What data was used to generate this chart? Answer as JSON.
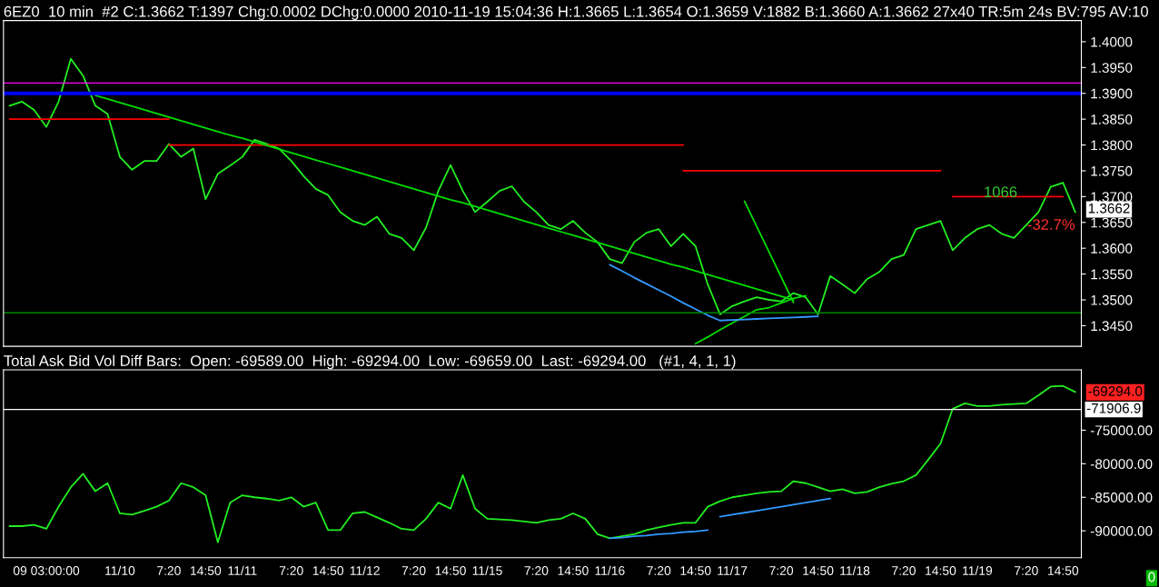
{
  "chart_data": [
    {
      "type": "line",
      "title": "6EZ0  10 min  #2 C:1.3662 T:1397 Chg:0.0002 DChg:0.0000 2010-11-19 15:04:36 H:1.3665 L:1.3654 O:1.3659 V:1882 B:1.3660 A:1.3662 27x40 TR:5m 24s BV:795 AV:10",
      "tick_labels": "y",
      "grid": false,
      "ylim": [
        1.341,
        1.4041
      ],
      "categories": [
        null,
        null,
        null,
        null,
        null,
        null,
        null,
        null,
        null,
        null,
        null,
        null,
        null,
        null,
        null,
        null,
        null,
        null,
        null,
        null,
        null,
        null,
        null,
        null,
        null,
        null,
        null,
        null,
        null,
        null,
        null,
        null,
        null,
        null,
        null,
        null,
        null,
        null,
        null,
        null,
        null,
        null,
        null,
        null,
        null,
        null,
        null,
        null,
        null,
        null,
        null,
        null,
        null,
        null,
        null,
        null,
        null,
        null,
        null,
        null,
        null,
        null,
        null,
        null,
        null,
        null,
        null,
        null,
        null,
        null,
        null,
        null,
        null,
        null,
        null,
        null,
        null,
        null,
        null,
        null,
        null,
        null,
        null,
        null,
        null,
        null,
        null,
        null
      ],
      "yticks": [
        {
          "value": 1.345,
          "label": "1.3450"
        },
        {
          "value": 1.35,
          "label": "1.3500"
        },
        {
          "value": 1.355,
          "label": "1.3550"
        },
        {
          "value": 1.36,
          "label": "1.3600"
        },
        {
          "value": 1.365,
          "label": "1.3650"
        },
        {
          "value": 1.37,
          "label": "1.3700"
        },
        {
          "value": 1.375,
          "label": "1.3750"
        },
        {
          "value": 1.38,
          "label": "1.3800"
        },
        {
          "value": 1.385,
          "label": "1.3850"
        },
        {
          "value": 1.39,
          "label": "1.3900"
        },
        {
          "value": 1.395,
          "label": "1.3950"
        },
        {
          "value": 1.4,
          "label": "1.4000"
        }
      ],
      "series": [
        {
          "color": "#22ee22",
          "values": [
            1.3876,
            1.3884,
            1.3868,
            1.3835,
            1.3884,
            1.3967,
            1.3934,
            1.3876,
            1.386,
            1.3777,
            1.3752,
            1.3769,
            1.3769,
            1.3802,
            1.3777,
            1.3793,
            1.3695,
            1.3744,
            1.376,
            1.3777,
            1.381,
            1.3802,
            1.3793,
            1.3769,
            1.374,
            1.3715,
            1.3703,
            1.367,
            1.3653,
            1.3645,
            1.3661,
            1.3628,
            1.362,
            1.3596,
            1.364,
            1.3711,
            1.3761,
            1.3711,
            1.367,
            1.369,
            1.3711,
            1.372,
            1.369,
            1.367,
            1.3645,
            1.3637,
            1.3653,
            1.363,
            1.3612,
            1.3579,
            1.3571,
            1.3612,
            1.363,
            1.3637,
            1.3604,
            1.3628,
            1.3604,
            1.353,
            1.3472,
            1.3488,
            1.3497,
            1.3505,
            1.35,
            1.3497,
            1.3513,
            1.3505,
            1.3472,
            1.3546,
            1.353,
            1.3513,
            1.354,
            1.3554,
            1.3579,
            1.3587,
            1.3637,
            1.3645,
            1.3653,
            1.3596,
            1.362,
            1.3637,
            1.3645,
            1.3628,
            1.362,
            1.3645,
            1.367,
            1.3719,
            1.3727,
            1.367
          ]
        },
        {
          "color": "#ff0000",
          "values": [
            1.385,
            1.385,
            1.385,
            1.385,
            1.385,
            1.385,
            1.385,
            1.385,
            1.385,
            1.385,
            1.385,
            1.385,
            1.385,
            1.385,
            null,
            null,
            null,
            null,
            null,
            null,
            null,
            null,
            null,
            null,
            null,
            null,
            null,
            null,
            null,
            null,
            null,
            null,
            null,
            null,
            null,
            null,
            null,
            null,
            null,
            null,
            null,
            null,
            null,
            null,
            null,
            null,
            null,
            null,
            null,
            null,
            null,
            null,
            null,
            null,
            null,
            null,
            null,
            null,
            null,
            null,
            null,
            null,
            null,
            null,
            null,
            null,
            null,
            null,
            null,
            null,
            null,
            null,
            null,
            null,
            null,
            null,
            null,
            null,
            null,
            null,
            null,
            null,
            null,
            null,
            null,
            null,
            null,
            null
          ]
        },
        {
          "color": "#ff0000",
          "values": [
            null,
            null,
            null,
            null,
            null,
            null,
            null,
            null,
            null,
            null,
            null,
            null,
            null,
            1.38,
            1.38,
            1.38,
            1.38,
            1.38,
            1.38,
            1.38,
            1.38,
            1.38,
            1.38,
            1.38,
            1.38,
            1.38,
            1.38,
            1.38,
            1.38,
            1.38,
            1.38,
            1.38,
            1.38,
            1.38,
            1.38,
            1.38,
            1.38,
            1.38,
            1.38,
            1.38,
            1.38,
            1.38,
            1.38,
            1.38,
            1.38,
            1.38,
            1.38,
            1.38,
            1.38,
            1.38,
            1.38,
            1.38,
            1.38,
            1.38,
            1.38,
            1.38,
            null,
            null,
            null,
            null,
            null,
            null,
            null,
            null,
            null,
            null,
            null,
            null,
            null,
            null,
            null,
            null,
            null,
            null,
            null,
            null,
            null,
            null,
            null,
            null,
            null,
            null,
            null,
            null,
            null,
            null,
            null,
            null
          ]
        },
        {
          "color": "#ff0000",
          "values": [
            null,
            null,
            null,
            null,
            null,
            null,
            null,
            null,
            null,
            null,
            null,
            null,
            null,
            null,
            null,
            null,
            null,
            null,
            null,
            null,
            null,
            null,
            null,
            null,
            null,
            null,
            null,
            null,
            null,
            null,
            null,
            null,
            null,
            null,
            null,
            null,
            null,
            null,
            null,
            null,
            null,
            null,
            null,
            null,
            null,
            null,
            null,
            null,
            null,
            null,
            null,
            null,
            null,
            null,
            null,
            1.375,
            1.375,
            1.375,
            1.375,
            1.375,
            1.375,
            1.375,
            1.375,
            1.375,
            1.375,
            1.375,
            1.375,
            1.375,
            1.375,
            1.375,
            1.375,
            1.375,
            1.375,
            1.375,
            1.375,
            1.375,
            1.375,
            null,
            null,
            null,
            null,
            null,
            null,
            null,
            null,
            null,
            null,
            null
          ]
        },
        {
          "color": "#ff0000",
          "values": [
            null,
            null,
            null,
            null,
            null,
            null,
            null,
            null,
            null,
            null,
            null,
            null,
            null,
            null,
            null,
            null,
            null,
            null,
            null,
            null,
            null,
            null,
            null,
            null,
            null,
            null,
            null,
            null,
            null,
            null,
            null,
            null,
            null,
            null,
            null,
            null,
            null,
            null,
            null,
            null,
            null,
            null,
            null,
            null,
            null,
            null,
            null,
            null,
            null,
            null,
            null,
            null,
            null,
            null,
            null,
            null,
            null,
            null,
            null,
            null,
            null,
            null,
            null,
            null,
            null,
            null,
            null,
            null,
            null,
            null,
            null,
            null,
            null,
            null,
            null,
            null,
            null,
            1.37,
            1.37,
            1.37,
            1.37,
            1.37,
            1.37,
            1.37,
            1.37,
            1.37,
            1.37,
            null
          ]
        },
        {
          "color": "#00dd00",
          "values": [
            null,
            null,
            null,
            null,
            null,
            null,
            null,
            1.3896,
            1.3889,
            1.3882,
            1.3875,
            1.3868,
            1.3861,
            1.3854,
            1.3847,
            1.384,
            1.3833,
            1.3826,
            1.3819,
            1.3813,
            1.3806,
            1.3799,
            1.3792,
            1.3785,
            1.3778,
            1.3771,
            1.3764,
            1.3757,
            1.375,
            1.3743,
            1.3736,
            1.3729,
            1.3722,
            1.3715,
            1.3708,
            1.3701,
            1.3694,
            1.3688,
            1.3681,
            1.3674,
            1.3667,
            1.366,
            1.3653,
            1.3646,
            1.3639,
            1.3632,
            1.3625,
            1.3618,
            1.3611,
            1.3604,
            1.3597,
            1.359,
            1.3583,
            1.3576,
            1.3569,
            1.3563,
            1.3556,
            1.3549,
            1.3542,
            1.3535,
            1.3528,
            1.3521,
            1.3514,
            1.3507,
            1.35,
            null,
            null,
            null,
            null,
            null,
            null,
            null,
            null,
            null,
            null,
            null,
            null,
            null,
            null,
            null,
            null,
            null,
            null,
            null,
            null,
            null,
            null,
            null
          ]
        },
        {
          "color": "#00dd00",
          "values": [
            null,
            null,
            null,
            null,
            null,
            null,
            null,
            null,
            null,
            null,
            null,
            null,
            null,
            null,
            null,
            null,
            null,
            null,
            null,
            null,
            null,
            null,
            null,
            null,
            null,
            null,
            null,
            null,
            null,
            null,
            null,
            null,
            null,
            null,
            null,
            null,
            null,
            null,
            null,
            null,
            null,
            null,
            null,
            null,
            null,
            null,
            null,
            null,
            null,
            null,
            null,
            null,
            null,
            null,
            null,
            null,
            1.3415,
            1.3428,
            1.3442,
            1.3455,
            1.3468,
            1.3481,
            1.3485,
            1.3494,
            1.3503,
            1.3508,
            null,
            null,
            null,
            null,
            null,
            null,
            null,
            null,
            null,
            null,
            null,
            null,
            null,
            null,
            null,
            null,
            null,
            null,
            null,
            null,
            null,
            null
          ]
        },
        {
          "color": "#00dd00",
          "values": [
            null,
            null,
            null,
            null,
            null,
            null,
            null,
            null,
            null,
            null,
            null,
            null,
            null,
            null,
            null,
            null,
            null,
            null,
            null,
            null,
            null,
            null,
            null,
            null,
            null,
            null,
            null,
            null,
            null,
            null,
            null,
            null,
            null,
            null,
            null,
            null,
            null,
            null,
            null,
            null,
            null,
            null,
            null,
            null,
            null,
            null,
            null,
            null,
            null,
            null,
            null,
            null,
            null,
            null,
            null,
            null,
            null,
            null,
            null,
            null,
            1.3691,
            1.3642,
            1.3593,
            1.3544,
            1.3495,
            null,
            null,
            null,
            null,
            null,
            null,
            null,
            null,
            null,
            null,
            null,
            null,
            null,
            null,
            null,
            null,
            null,
            null,
            null,
            null,
            null,
            null,
            null
          ]
        },
        {
          "color": "#3399ff",
          "values": [
            null,
            null,
            null,
            null,
            null,
            null,
            null,
            null,
            null,
            null,
            null,
            null,
            null,
            null,
            null,
            null,
            null,
            null,
            null,
            null,
            null,
            null,
            null,
            null,
            null,
            null,
            null,
            null,
            null,
            null,
            null,
            null,
            null,
            null,
            null,
            null,
            null,
            null,
            null,
            null,
            null,
            null,
            null,
            null,
            null,
            null,
            null,
            null,
            null,
            1.3568,
            1.3556,
            1.3543,
            1.3531,
            1.3519,
            1.3507,
            1.3494,
            1.3482,
            1.347,
            1.346,
            1.3461,
            1.3462,
            1.3463,
            1.3464,
            1.3465,
            1.3466,
            1.3467,
            1.3468,
            null,
            null,
            null,
            null,
            null,
            null,
            null,
            null,
            null,
            null,
            null,
            null,
            null,
            null,
            null,
            null,
            null,
            null,
            null,
            null,
            null
          ]
        }
      ],
      "ref_lines": [
        {
          "axis": "y",
          "value": 1.392,
          "color": "#ff00ff"
        },
        {
          "axis": "y",
          "value": 1.39,
          "color": "#0000ff"
        },
        {
          "axis": "y",
          "value": 1.3475,
          "color": "#008800"
        }
      ],
      "annotations": [
        "1066",
        "-32.7%",
        "1.3662"
      ]
    },
    {
      "type": "line",
      "title": "Total Ask Bid Vol Diff Bars:  Open: -69589.00  High: -69294.00  Low: -69659.00  Last: -69294.00   (#1, 4, 1, 1)",
      "grid": false,
      "ylim": [
        -94000,
        -66000
      ],
      "categories": [
        null,
        null,
        null,
        "09 03:00:00",
        null,
        null,
        null,
        null,
        null,
        "11/10",
        null,
        null,
        null,
        "7:20",
        null,
        null,
        "14:50",
        null,
        null,
        "11/11",
        null,
        null,
        null,
        "7:20",
        null,
        null,
        "14:50",
        null,
        null,
        "11/12",
        null,
        null,
        null,
        "7:20",
        null,
        null,
        "14:50",
        null,
        null,
        "11/15",
        null,
        null,
        null,
        "7:20",
        null,
        null,
        "14:50",
        null,
        null,
        "11/16",
        null,
        null,
        null,
        "7:20",
        null,
        null,
        "14:50",
        null,
        null,
        "11/17",
        null,
        null,
        null,
        "7:20",
        null,
        null,
        "14:50",
        null,
        null,
        "11/18",
        null,
        null,
        null,
        "7:20",
        null,
        null,
        "14:50",
        null,
        null,
        "11/19",
        null,
        null,
        null,
        "7:20",
        null,
        null,
        "14:50",
        null
      ],
      "yticks": [
        {
          "value": -90000,
          "label": "-90000.00"
        },
        {
          "value": -85000,
          "label": "-85000.00"
        },
        {
          "value": -80000,
          "label": "-80000.00"
        },
        {
          "value": -75000,
          "label": "-75000.00"
        }
      ],
      "series": [
        {
          "color": "#22ee22",
          "values": [
            -89300,
            -89300,
            -89100,
            -89700,
            -86400,
            -83500,
            -81500,
            -84100,
            -82900,
            -87400,
            -87600,
            -87000,
            -86400,
            -85500,
            -82900,
            -83500,
            -84700,
            -91700,
            -85800,
            -84700,
            -85000,
            -85200,
            -85500,
            -85000,
            -86400,
            -85800,
            -89900,
            -89900,
            -87400,
            -87200,
            -88000,
            -88800,
            -89700,
            -89900,
            -88200,
            -85800,
            -86700,
            -81700,
            -86700,
            -88200,
            -88300,
            -88400,
            -88600,
            -88800,
            -88400,
            -88200,
            -87400,
            -88200,
            -90500,
            -91100,
            -90800,
            -90500,
            -89900,
            -89500,
            -89100,
            -88800,
            -88800,
            -86400,
            -85600,
            -85000,
            -84700,
            -84400,
            -84200,
            -84100,
            -82600,
            -82900,
            -83500,
            -84100,
            -83800,
            -84400,
            -84200,
            -83500,
            -83000,
            -82600,
            -81700,
            -79400,
            -77000,
            -71800,
            -71000,
            -71400,
            -71400,
            -71200,
            -71100,
            -71000,
            -69800,
            -68500,
            -68400,
            -69300
          ]
        },
        {
          "color": "#3399ff",
          "values": [
            null,
            null,
            null,
            null,
            null,
            null,
            null,
            null,
            null,
            null,
            null,
            null,
            null,
            null,
            null,
            null,
            null,
            null,
            null,
            null,
            null,
            null,
            null,
            null,
            null,
            null,
            null,
            null,
            null,
            null,
            null,
            null,
            null,
            null,
            null,
            null,
            null,
            null,
            null,
            null,
            null,
            null,
            null,
            null,
            null,
            null,
            null,
            null,
            null,
            -91100,
            -91000,
            -90800,
            -90700,
            -90500,
            -90400,
            -90200,
            -90100,
            -89900,
            null,
            null,
            null,
            null,
            null,
            null,
            null,
            null,
            null,
            null,
            null,
            null,
            null,
            null,
            null,
            null,
            null,
            null,
            null,
            null,
            null,
            null,
            null,
            null,
            null,
            null,
            null,
            null,
            null,
            null
          ]
        },
        {
          "color": "#3399ff",
          "values": [
            null,
            null,
            null,
            null,
            null,
            null,
            null,
            null,
            null,
            null,
            null,
            null,
            null,
            null,
            null,
            null,
            null,
            null,
            null,
            null,
            null,
            null,
            null,
            null,
            null,
            null,
            null,
            null,
            null,
            null,
            null,
            null,
            null,
            null,
            null,
            null,
            null,
            null,
            null,
            null,
            null,
            null,
            null,
            null,
            null,
            null,
            null,
            null,
            null,
            null,
            null,
            null,
            null,
            null,
            null,
            null,
            null,
            null,
            -87900,
            -87600,
            -87300,
            -87000,
            -86700,
            -86400,
            -86100,
            -85800,
            -85500,
            -85200,
            null,
            null,
            null,
            null,
            null,
            null,
            null,
            null,
            null,
            null,
            null,
            null,
            null,
            null,
            null,
            null,
            null,
            null,
            null,
            null
          ]
        }
      ],
      "ref_lines": [
        {
          "axis": "y",
          "value": -71906.9,
          "label": "-71906.9",
          "color": "#ffffff"
        }
      ],
      "annotations": [
        "-69294.0",
        "0"
      ]
    }
  ]
}
